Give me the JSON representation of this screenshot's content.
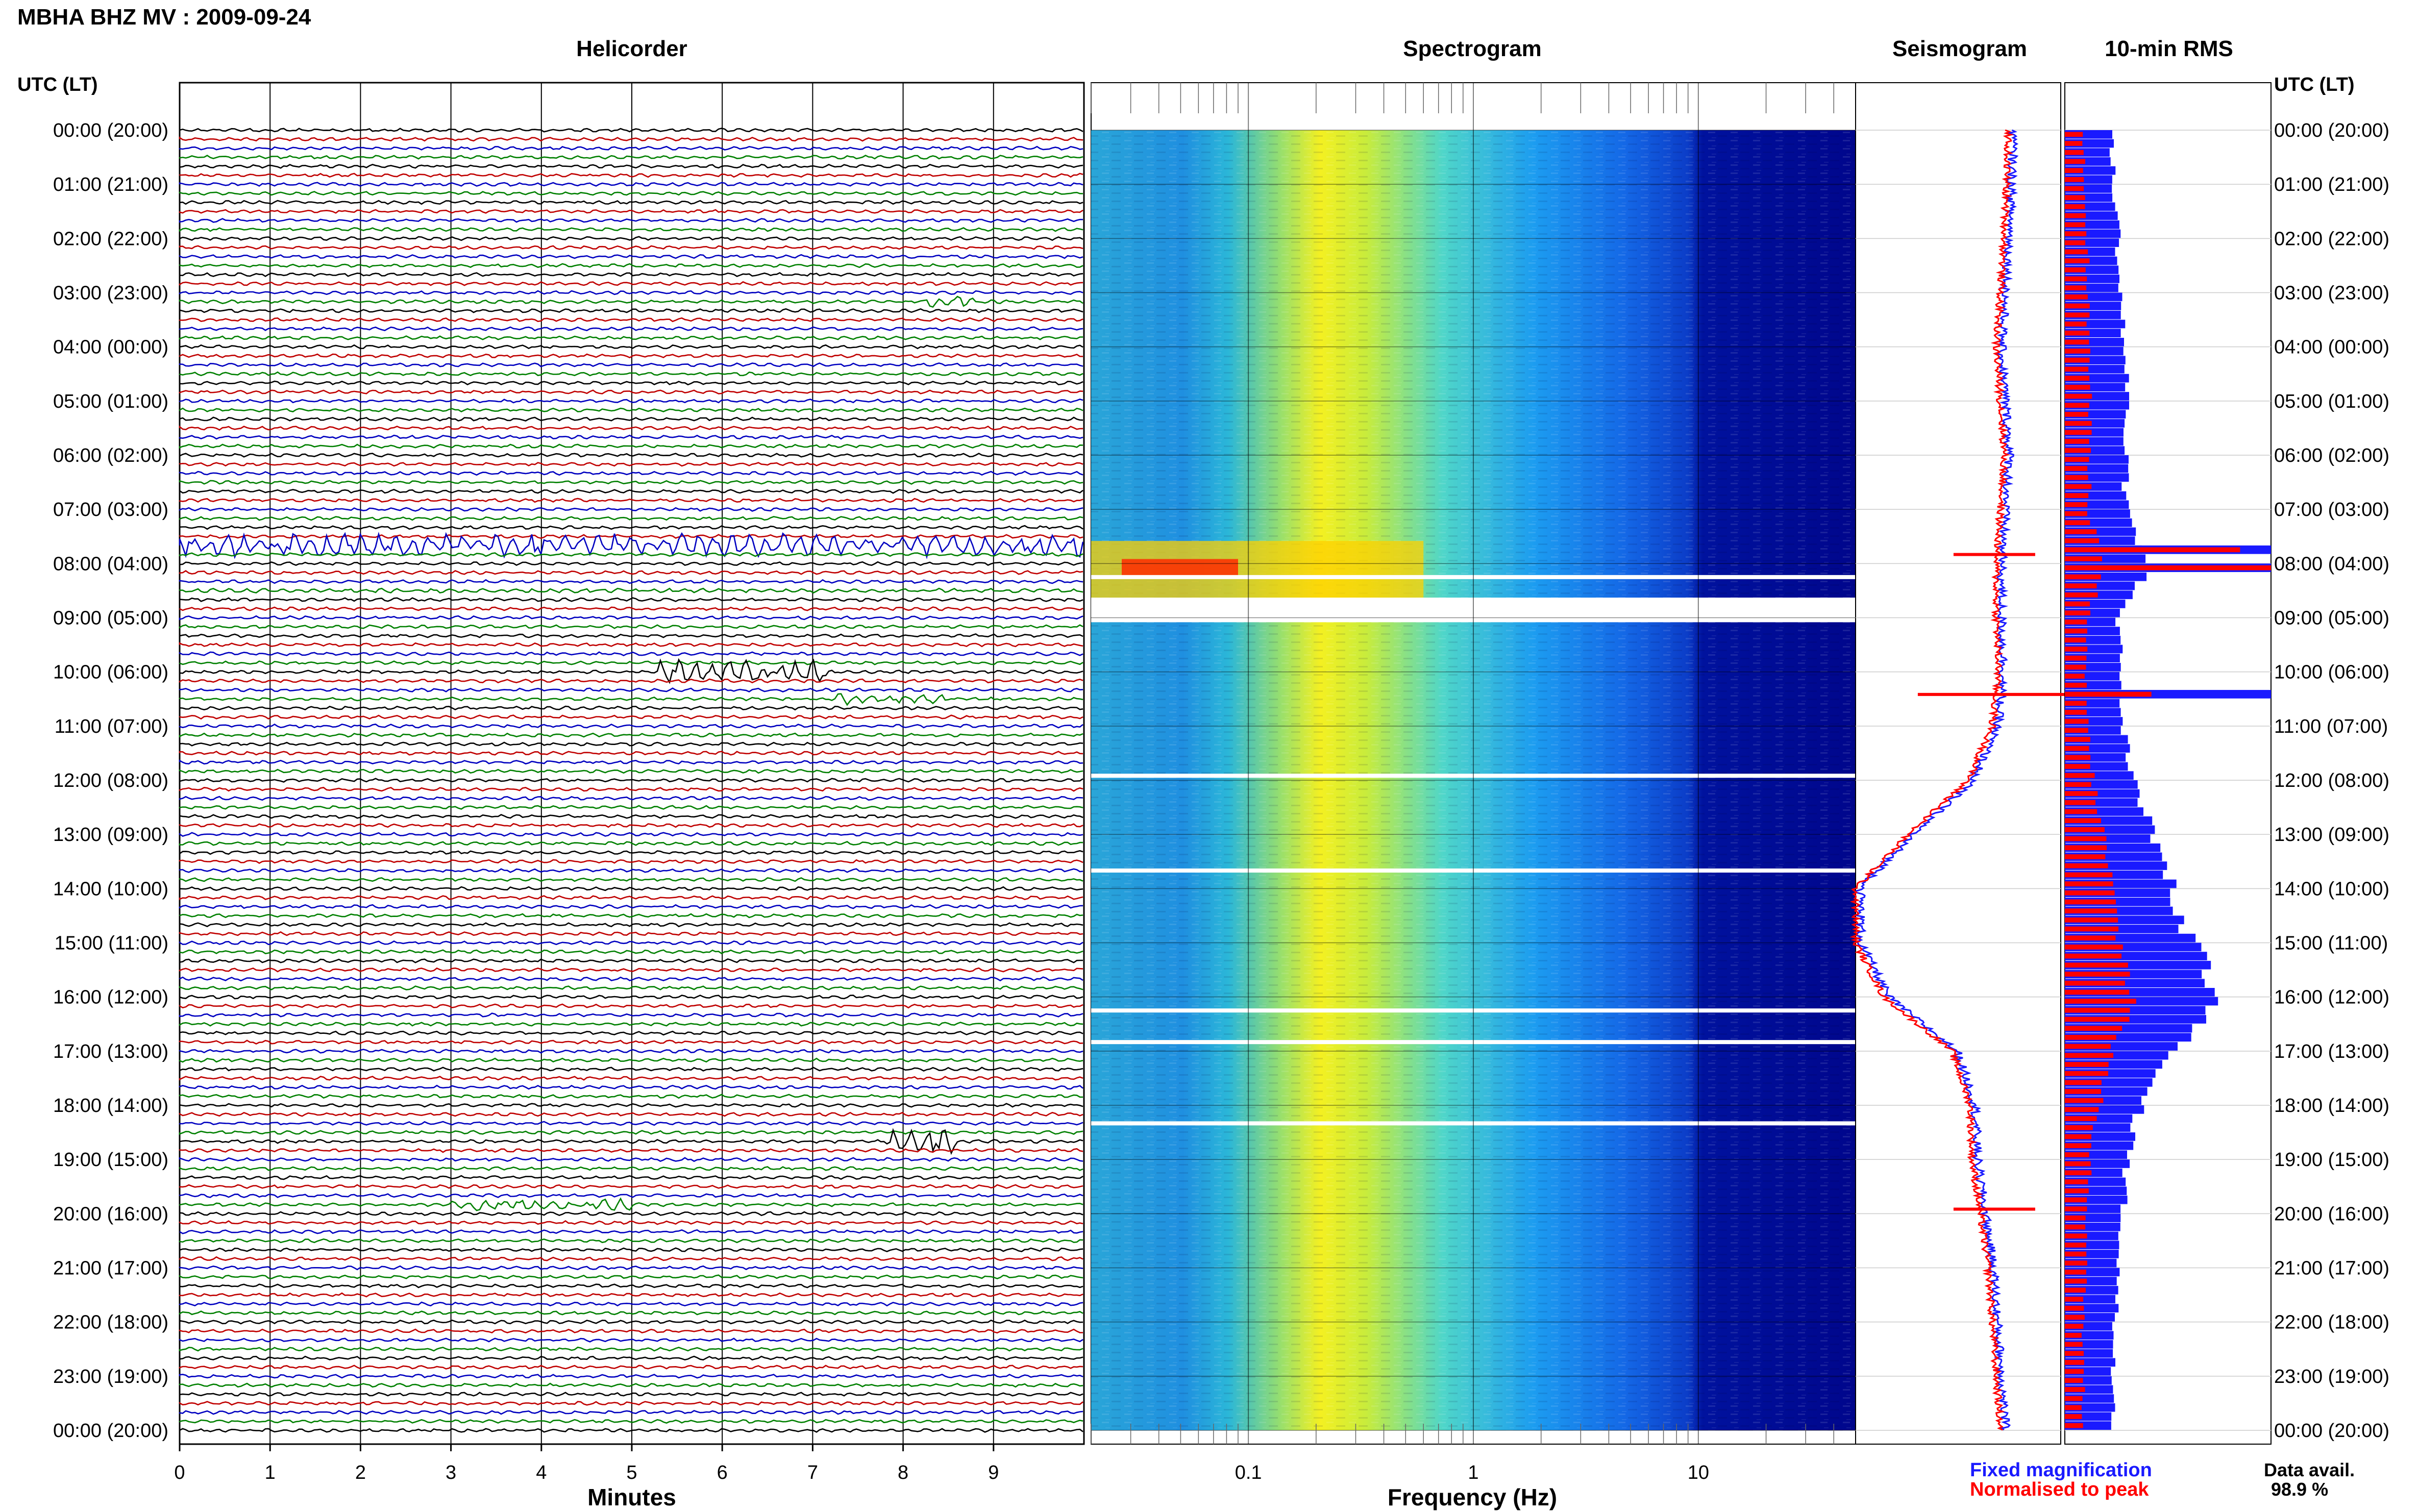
{
  "header": {
    "station_title": "MBHA BHZ MV : 2009-09-24",
    "time_label_left": "UTC (LT)",
    "time_label_right": "UTC (LT)"
  },
  "panels": {
    "helicorder_title": "Helicorder",
    "spectrogram_title": "Spectrogram",
    "seismogram_title": "Seismogram",
    "rms_title": "10-min RMS",
    "helicorder_xlabel": "Minutes",
    "spectrogram_xlabel": "Frequency (Hz)"
  },
  "legend": {
    "fixed_label": "Fixed magnification",
    "normalised_label": "Normalised to peak",
    "data_avail_label": "Data avail.",
    "data_avail_value": "98.9 %"
  },
  "colors": {
    "fixed": "#1a1aff",
    "normalised": "#ff0000",
    "trace_cycle": [
      "#000000",
      "#c00000",
      "#0000c0",
      "#008000"
    ],
    "spectrogram_low": "#00008b",
    "spectrogram_high": "#ff0000"
  },
  "chart_data": [
    {
      "type": "line",
      "name": "helicorder",
      "title": "Helicorder",
      "xlabel": "Minutes",
      "x_ticks": [
        "0",
        "1",
        "2",
        "3",
        "4",
        "5",
        "6",
        "7",
        "8",
        "9"
      ],
      "xlim": [
        0,
        10
      ],
      "time_labels": [
        "00:00 (20:00)",
        "01:00 (21:00)",
        "02:00 (22:00)",
        "03:00 (23:00)",
        "04:00 (00:00)",
        "05:00 (01:00)",
        "06:00 (02:00)",
        "07:00 (03:00)",
        "08:00 (04:00)",
        "09:00 (05:00)",
        "10:00 (06:00)",
        "11:00 (07:00)",
        "12:00 (08:00)",
        "13:00 (09:00)",
        "14:00 (10:00)",
        "15:00 (11:00)",
        "16:00 (12:00)",
        "17:00 (13:00)",
        "18:00 (14:00)",
        "19:00 (15:00)",
        "20:00 (16:00)",
        "21:00 (17:00)",
        "22:00 (18:00)",
        "23:00 (19:00)",
        "00:00 (20:00)"
      ],
      "lines_per_hour": 6,
      "events": [
        {
          "time": "03:10",
          "minutes": [
            8.2,
            8.8
          ],
          "level": "moderate"
        },
        {
          "time": "07:40",
          "minutes": [
            0,
            10
          ],
          "level": "strong"
        },
        {
          "time": "08:30",
          "minutes": [
            0,
            10
          ],
          "level": "gaps"
        },
        {
          "time": "10:00",
          "minutes": [
            5.3,
            7.2
          ],
          "level": "strong"
        },
        {
          "time": "10:30",
          "minutes": [
            7.2,
            8.5
          ],
          "level": "moderate"
        },
        {
          "time": "18:40",
          "minutes": [
            7.8,
            8.6
          ],
          "level": "strong"
        },
        {
          "time": "19:50",
          "minutes": [
            3.0,
            5.0
          ],
          "level": "moderate"
        }
      ]
    },
    {
      "type": "heatmap",
      "name": "spectrogram",
      "title": "Spectrogram",
      "xlabel": "Frequency (Hz)",
      "x_scale": "log",
      "xlim": [
        0.02,
        50
      ],
      "x_ticks": [
        "0.1",
        "1",
        "10"
      ],
      "microseism_peak_hz": 0.25,
      "bright_band_hz": [
        0.18,
        0.45
      ],
      "gaps_utc": [
        "08:15",
        "08:40",
        "11:55",
        "13:40",
        "16:15",
        "16:50",
        "18:20"
      ],
      "colormap": [
        "#00008b",
        "#0050ff",
        "#00c8ff",
        "#80ff80",
        "#ffff00",
        "#ff8000",
        "#ff0000"
      ]
    },
    {
      "type": "line",
      "name": "seismogram",
      "title": "Seismogram",
      "series": [
        {
          "name": "Fixed magnification",
          "color": "#1a1aff"
        },
        {
          "name": "Normalised to peak",
          "color": "#ff0000"
        }
      ],
      "hours": [
        0,
        1,
        2,
        3,
        4,
        5,
        6,
        7,
        8,
        9,
        10,
        11,
        12,
        13,
        14,
        15,
        16,
        17,
        18,
        19,
        20,
        21,
        22,
        23,
        24
      ],
      "offset": [
        0.76,
        0.75,
        0.74,
        0.72,
        0.7,
        0.72,
        0.74,
        0.72,
        0.7,
        0.7,
        0.71,
        0.68,
        0.56,
        0.26,
        0.0,
        0.0,
        0.14,
        0.48,
        0.57,
        0.58,
        0.62,
        0.66,
        0.68,
        0.7,
        0.72
      ]
    },
    {
      "type": "bar",
      "name": "rms",
      "title": "10-min RMS",
      "hours": [
        0,
        1,
        2,
        3,
        4,
        5,
        6,
        7,
        8,
        9,
        10,
        11,
        12,
        13,
        14,
        15,
        16,
        17,
        18,
        19,
        20,
        21,
        22,
        23
      ],
      "fixed": [
        0.22,
        0.24,
        0.26,
        0.27,
        0.29,
        0.3,
        0.29,
        0.3,
        0.4,
        0.26,
        0.27,
        0.28,
        0.34,
        0.44,
        0.52,
        0.62,
        0.78,
        0.48,
        0.36,
        0.3,
        0.28,
        0.26,
        0.24,
        0.24
      ],
      "normalised": [
        0.09,
        0.1,
        0.11,
        0.11,
        0.12,
        0.12,
        0.12,
        0.12,
        0.2,
        0.1,
        0.1,
        0.11,
        0.14,
        0.19,
        0.23,
        0.27,
        0.34,
        0.22,
        0.16,
        0.12,
        0.11,
        0.1,
        0.09,
        0.09
      ],
      "spikes": [
        {
          "time": "07:40",
          "fixed": 1.0,
          "normalised": 0.85
        },
        {
          "time": "08:00",
          "fixed": 1.0,
          "normalised": 1.0
        },
        {
          "time": "10:20",
          "fixed": 1.0,
          "normalised": 0.42
        }
      ]
    }
  ]
}
